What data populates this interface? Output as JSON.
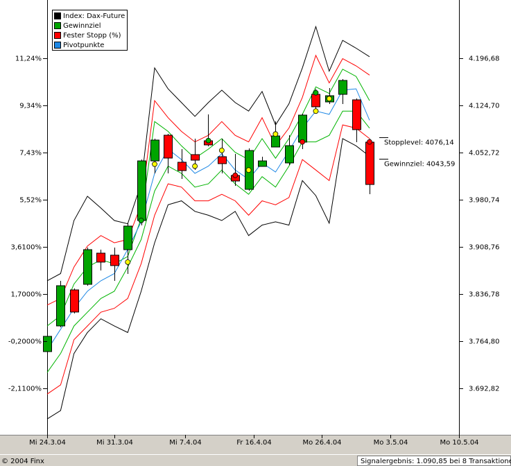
{
  "chart_data": {
    "type": "candlestick",
    "x": [
      0,
      1,
      2,
      3,
      4,
      5,
      6,
      7,
      8,
      9,
      10,
      11,
      12,
      13,
      14,
      15,
      16,
      17,
      18,
      19,
      20,
      21,
      22,
      23,
      24
    ],
    "open": [
      3748.9,
      3788.1,
      3843.1,
      3851.6,
      3899.2,
      3896.1,
      3904.5,
      3949.0,
      4040.0,
      4079.2,
      4037.9,
      4049.6,
      4070.7,
      4046.4,
      4017.8,
      3996.6,
      4031.6,
      4061.2,
      4036.9,
      4068.6,
      4141.6,
      4130.0,
      4141.6,
      4133.2,
      4068.6
    ],
    "high": [
      3774.3,
      3856.9,
      3845.2,
      3907.7,
      3904.5,
      3907.7,
      3944.8,
      4042.1,
      4073.9,
      4081.3,
      4058.0,
      4073.9,
      4110.9,
      4073.9,
      4050.6,
      4059.1,
      4046.4,
      4100.4,
      4079.2,
      4112.0,
      4150.1,
      4151.2,
      4164.9,
      4135.3,
      4073.9
    ],
    "low": [
      3745.8,
      3786.0,
      3807.2,
      3849.5,
      3872.8,
      3856.9,
      3867.5,
      3941.6,
      4021.0,
      4021.0,
      4012.5,
      4026.3,
      4062.3,
      4021.0,
      4001.9,
      3994.5,
      4031.6,
      4061.2,
      4033.7,
      4058.0,
      4116.2,
      4126.8,
      4126.8,
      4068.6,
      3989.2
    ],
    "close": [
      3772.2,
      3849.5,
      3809.3,
      3904.5,
      3885.5,
      3880.2,
      3940.5,
      4040.0,
      4071.8,
      4044.3,
      4025.2,
      4041.1,
      4064.4,
      4035.8,
      4009.3,
      4055.9,
      4040.0,
      4078.1,
      4063.3,
      4109.9,
      4122.6,
      4139.5,
      4162.8,
      4087.7,
      4004.0
    ],
    "up_color": "#00a400",
    "down_color": "#ff0000",
    "bands": [
      {
        "color": "#000000",
        "upper": [
          3857,
          3868,
          3949,
          3986,
          3968,
          3949,
          3944,
          4005,
          4182,
          4150,
          4129,
          4108,
          4129,
          4148,
          4129,
          4116,
          4146,
          4095,
          4127,
          4182,
          4245,
          4177,
          4224,
          4212,
          4199
        ],
        "lower": [
          3646,
          3659,
          3746,
          3778,
          3799,
          3788,
          3778,
          3841,
          3915,
          3973,
          3979,
          3963,
          3957,
          3949,
          3963,
          3926,
          3942,
          3947,
          3942,
          4010,
          3987,
          3945,
          4074,
          4063,
          4047
        ]
      },
      {
        "color": "#ff0000",
        "upper": [
          3820,
          3830,
          3878,
          3910,
          3926,
          3915,
          3920,
          3973,
          4132,
          4106,
          4085,
          4069,
          4079,
          4100,
          4079,
          4069,
          4106,
          4063,
          4090,
          4137,
          4201,
          4159,
          4196,
          4185,
          4171
        ],
        "lower": [
          3684,
          3698,
          3767,
          3788,
          3809,
          3815,
          3830,
          3883,
          3957,
          4005,
          4000,
          3979,
          3979,
          3989,
          3979,
          3957,
          3979,
          3973,
          3984,
          4042,
          4026,
          4010,
          4095,
          4090,
          4074
        ]
      },
      {
        "color": "#00b400",
        "upper": [
          3788,
          3804,
          3852,
          3878,
          3889,
          3883,
          3894,
          3952,
          4100,
          4085,
          4063,
          4044,
          4058,
          4074,
          4053,
          4042,
          4074,
          4044,
          4074,
          4111,
          4153,
          4143,
          4180,
          4169,
          4132
        ],
        "lower": [
          3717,
          3746,
          3788,
          3809,
          3830,
          3841,
          3878,
          3920,
          3994,
          4032,
          4021,
          4000,
          4005,
          4026,
          4005,
          3989,
          4016,
          4000,
          4032,
          4069,
          4069,
          4079,
          4116,
          4116,
          4090
        ]
      }
    ],
    "pivot": {
      "color": "#1e88e5",
      "values": [
        3751,
        3783,
        3815,
        3841,
        3857,
        3868,
        3905,
        3947,
        4021,
        4058,
        4042,
        4021,
        4032,
        4051,
        4026,
        4012,
        4037,
        4023,
        4055,
        4090,
        4116,
        4111,
        4148,
        4150,
        4102
      ]
    },
    "markers": [
      {
        "x": 6,
        "y": 3885.5,
        "color": "#ffff00"
      },
      {
        "x": 8,
        "y": 4035,
        "color": "#ffff00"
      },
      {
        "x": 11,
        "y": 4032,
        "color": "#ffff00"
      },
      {
        "x": 13,
        "y": 4056,
        "color": "#ffff00"
      },
      {
        "x": 15,
        "y": 4026,
        "color": "#ffff00"
      },
      {
        "x": 17,
        "y": 4081,
        "color": "#ffff00"
      },
      {
        "x": 20,
        "y": 4116,
        "color": "#ffff00"
      },
      {
        "x": 21,
        "y": 4135,
        "color": "#ffff00"
      },
      {
        "x": 7,
        "y": 3949,
        "color": "#00b400"
      },
      {
        "x": 12,
        "y": 4071,
        "color": "#00b400"
      },
      {
        "x": 20,
        "y": 4144,
        "color": "#00b400"
      },
      {
        "x": 14,
        "y": 4018,
        "color": "#ff0000"
      },
      {
        "x": 19,
        "y": 4069,
        "color": "#ff0000"
      },
      {
        "x": 24,
        "y": 4069,
        "color": "#ff0000"
      }
    ],
    "legend": [
      {
        "name": "Index: Dax-Future",
        "color": "#000000"
      },
      {
        "name": "Gewinnziel",
        "color": "#00a400"
      },
      {
        "name": "Fester Stopp (%)",
        "color": "#ff0000"
      },
      {
        "name": "Pivotpunkte",
        "color": "#1e88e5"
      }
    ],
    "annotations": [
      {
        "label": "Stopplevel: 4076,14",
        "value": 4076.14
      },
      {
        "label": "Gewinnziel: 4043,59",
        "value": 4043.59
      }
    ],
    "xlim": [
      0,
      30.66
    ],
    "xticks": [
      {
        "value": 0,
        "label": "Mi 24.3.04"
      },
      {
        "value": 5,
        "label": "Mi 31.3.04"
      },
      {
        "value": 10.27,
        "label": "Mi 7.4.04"
      },
      {
        "value": 15.38,
        "label": "Fr 16.4.04"
      },
      {
        "value": 20.44,
        "label": "Mo 26.4.04"
      },
      {
        "value": 25.55,
        "label": "Mo 3.5.04"
      },
      {
        "value": 30.66,
        "label": "Mo 10.5.04"
      }
    ],
    "ylim": [
      3621.9,
      4272.9
    ],
    "yticks": [
      {
        "value": 4196.68,
        "label": "4.196,68"
      },
      {
        "value": 4124.7,
        "label": "4.124,70"
      },
      {
        "value": 4052.72,
        "label": "4.052,72"
      },
      {
        "value": 3980.74,
        "label": "3.980,74"
      },
      {
        "value": 3908.76,
        "label": "3.908,76"
      },
      {
        "value": 3836.78,
        "label": "3.836,78"
      },
      {
        "value": 3764.8,
        "label": "3.764,80"
      },
      {
        "value": 3692.82,
        "label": "3.692,82"
      }
    ],
    "y2lim": [
      -3.99,
      13.26
    ],
    "y2ticks": [
      {
        "value": 11.24,
        "label": "11,24%"
      },
      {
        "value": 9.34,
        "label": "9,34%"
      },
      {
        "value": 7.43,
        "label": "7,43%"
      },
      {
        "value": 5.52,
        "label": "5,52%"
      },
      {
        "value": 3.61,
        "label": "3,6100%"
      },
      {
        "value": 1.7,
        "label": "1,7000%"
      },
      {
        "value": -0.2,
        "label": "-0,2000%"
      },
      {
        "value": -2.11,
        "label": "-2,1100%"
      }
    ],
    "source": "© 2004 Finx",
    "note": "Signalergebnis: 1.090,85 bei 8 Transaktionen"
  }
}
